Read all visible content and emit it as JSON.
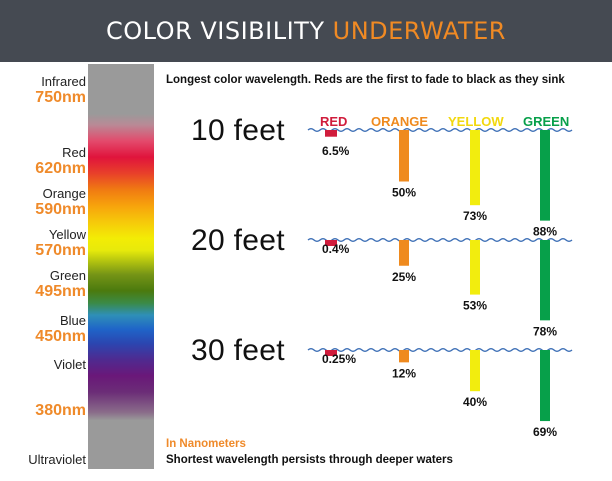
{
  "header": {
    "title_white": "COLOR VISIBILITY",
    "title_accent": "UNDERWATER"
  },
  "spectrum": [
    {
      "name": "Infrared",
      "nm": "750nm"
    },
    {
      "name": "Red",
      "nm": "620nm"
    },
    {
      "name": "Orange",
      "nm": "590nm"
    },
    {
      "name": "Yellow",
      "nm": "570nm"
    },
    {
      "name": "Green",
      "nm": "495nm"
    },
    {
      "name": "Blue",
      "nm": "450nm"
    },
    {
      "name": "Violet",
      "nm": ""
    },
    {
      "name": "",
      "nm": "380nm"
    },
    {
      "name": "Ultraviolet",
      "nm": ""
    }
  ],
  "notes": {
    "top": "Longest color wavelength. Reds are the first to fade to black as they sink",
    "units": "In Nanometers",
    "bottom": "Shortest wavelength persists through deeper waters"
  },
  "chart_data": {
    "type": "bar",
    "title": "COLOR VISIBILITY UNDERWATER",
    "categories": [
      "10 feet",
      "20 feet",
      "30 feet"
    ],
    "series": [
      {
        "name": "RED",
        "color": "#d01c3c",
        "values": [
          6.5,
          0.4,
          0.25
        ],
        "labels": [
          "6.5%",
          "0.4%",
          "0.25%"
        ]
      },
      {
        "name": "ORANGE",
        "color": "#ef8a1e",
        "values": [
          50,
          25,
          12
        ],
        "labels": [
          "50%",
          "25%",
          "12%"
        ]
      },
      {
        "name": "YELLOW",
        "color": "#f2ed0e",
        "values": [
          73,
          53,
          40
        ],
        "labels": [
          "73%",
          "53%",
          "40%"
        ]
      },
      {
        "name": "GREEN",
        "color": "#07a04a",
        "values": [
          88,
          78,
          69
        ],
        "labels": [
          "88%",
          "78%",
          "69%"
        ]
      }
    ],
    "unit": "%",
    "ylim": [
      0,
      100
    ]
  },
  "colors": {
    "header_bg": "#454a52",
    "accent": "#f08a24",
    "wave": "#3a6db5"
  }
}
